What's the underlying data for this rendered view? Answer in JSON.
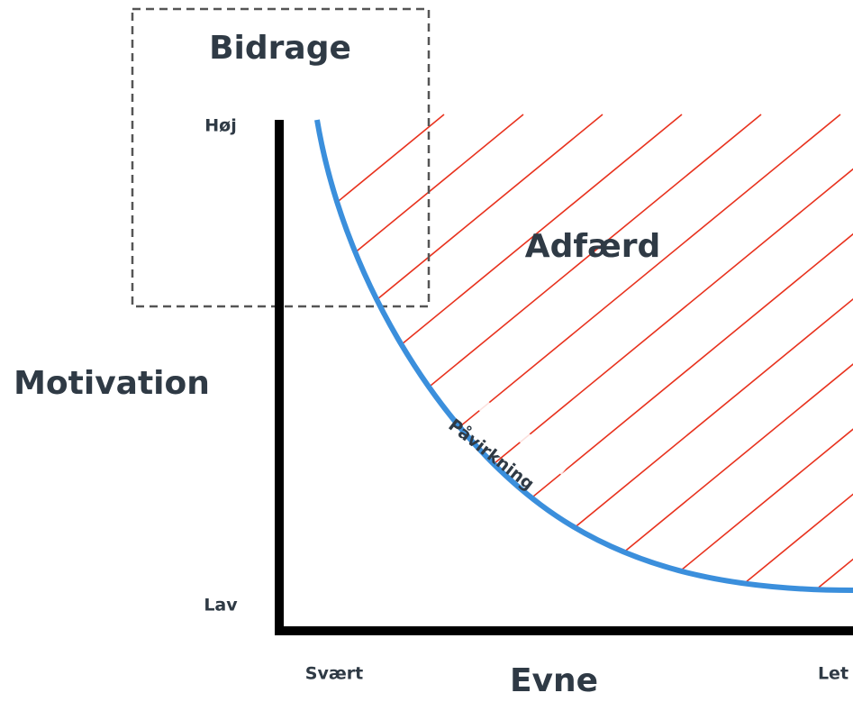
{
  "title": "Bidrage",
  "y_axis": {
    "label": "Motivation",
    "high": "Høj",
    "low": "Lav"
  },
  "x_axis": {
    "label": "Evne",
    "low": "Svært",
    "high": "Let"
  },
  "region_label": "Adfærd",
  "curve_label": "Påvirkning"
}
